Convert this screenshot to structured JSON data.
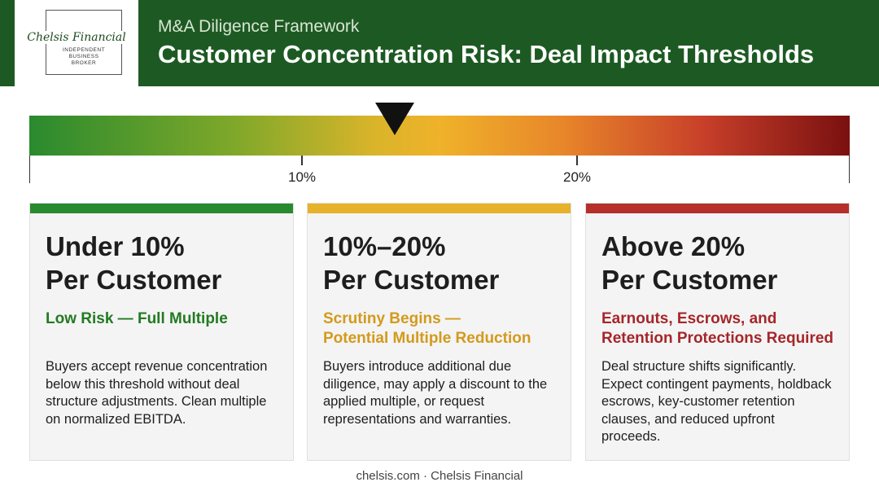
{
  "logo": {
    "name": "Chelsis Financial",
    "sub_lines": [
      "INDEPENDENT",
      "BUSINESS",
      "BROKER"
    ]
  },
  "header": {
    "eyebrow": "M&A Diligence Framework",
    "title": "Customer Concentration Risk: Deal Impact Thresholds"
  },
  "scale": {
    "ticks": [
      "10%",
      "20%"
    ],
    "marker_label": ""
  },
  "cards": [
    {
      "heading_lines": [
        "Under 10%",
        "Per Customer"
      ],
      "sub_lines": [
        "Low Risk — Full Multiple"
      ],
      "body_lines": [
        "Buyers accept revenue concentration",
        "below this threshold without deal",
        "structure adjustments. Clean multiple",
        "on normalized EBITDA."
      ]
    },
    {
      "heading_lines": [
        "10%–20%",
        "Per Customer"
      ],
      "sub_lines": [
        "Scrutiny Begins —",
        "Potential Multiple Reduction"
      ],
      "body_lines": [
        "Buyers introduce additional due",
        "diligence, may apply a discount to the",
        "applied multiple, or request",
        "representations and warranties."
      ]
    },
    {
      "heading_lines": [
        "Above 20%",
        "Per Customer"
      ],
      "sub_lines": [
        "Earnouts, Escrows, and",
        "Retention Protections Required"
      ],
      "body_lines": [
        "Deal structure shifts significantly.",
        "Expect contingent payments, holdback",
        "escrows, key-customer retention",
        "clauses, and reduced upfront",
        "proceeds."
      ]
    }
  ],
  "colors": {
    "header_bg": "#1d5a23",
    "low": "#2a8a2e",
    "mid": "#e7b12c",
    "high": "#b5302a",
    "low_text": "#237a22",
    "mid_text": "#d39a1c",
    "high_text": "#a6262a"
  },
  "footer": "chelsis.com · Chelsis Financial"
}
